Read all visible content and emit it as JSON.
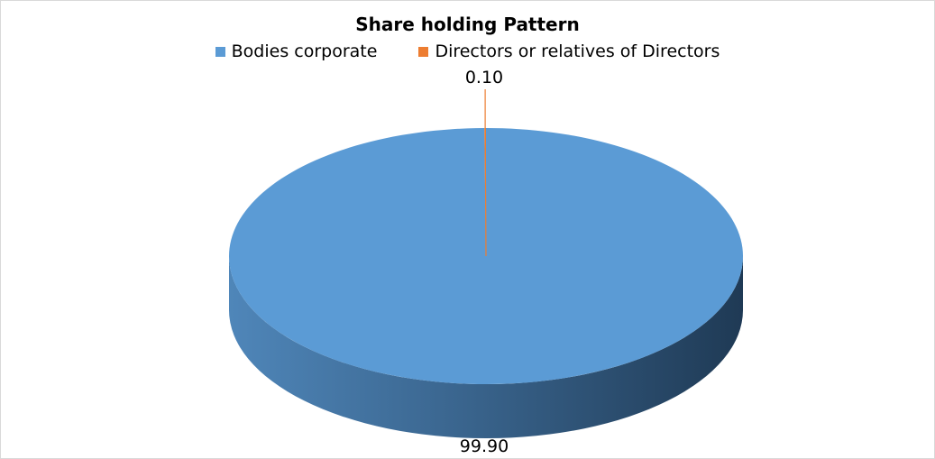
{
  "chart_data": {
    "type": "pie",
    "title": "Share holding  Pattern",
    "categories": [
      "Bodies corporate",
      "Directors or relatives of Directors"
    ],
    "values": [
      99.9,
      0.1
    ],
    "data_labels": [
      "99.90",
      "0.10"
    ],
    "colors": [
      "#5b9bd5",
      "#ed7d31"
    ],
    "legend_position": "top",
    "style": "3d"
  }
}
